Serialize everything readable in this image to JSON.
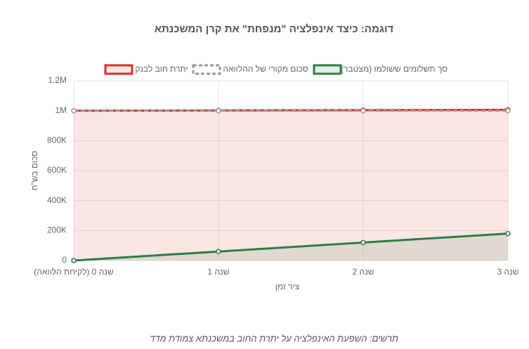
{
  "chart_data": {
    "type": "line",
    "title": "דוגמה: כיצד אינפלציה \"מנפחת\" את קרן המשכנתא",
    "x_label": "ציר זמן",
    "y_label": "סכום בש\"ח",
    "caption": "תרשים: השפעת האינפלציה על יתרת החוב במשכנתא צמודת מדד",
    "categories": [
      "שנה 0 (לקיחת הלוואה)",
      "שנה 1",
      "שנה 2",
      "שנה 3"
    ],
    "series": [
      {
        "name": "יתרת חוב לבנק",
        "color": "#d9302c",
        "fill": true,
        "dashed": false,
        "values": [
          1000000,
          1002000,
          1004000,
          1006000
        ]
      },
      {
        "name": "סכום מקורי של ההלוואה",
        "color": "#9a9a9a",
        "fill": false,
        "dashed": true,
        "values": [
          1000000,
          1000000,
          1000000,
          1000000
        ]
      },
      {
        "name": "סך תשלומים ששולמו (מצטבר)",
        "color": "#2e7d45",
        "fill": true,
        "dashed": false,
        "values": [
          0,
          60000,
          120000,
          180000
        ]
      }
    ],
    "ylim": [
      0,
      1200000
    ],
    "yticks": [
      0,
      {
        "value": 200000,
        "label": "200K"
      },
      {
        "value": 400000,
        "label": "400K"
      },
      {
        "value": 600000,
        "label": "600K"
      },
      {
        "value": 800000,
        "label": "800K"
      },
      {
        "value": 1000000,
        "label": "1M"
      },
      {
        "value": 1200000,
        "label": "1.2M"
      }
    ],
    "grid": true
  }
}
